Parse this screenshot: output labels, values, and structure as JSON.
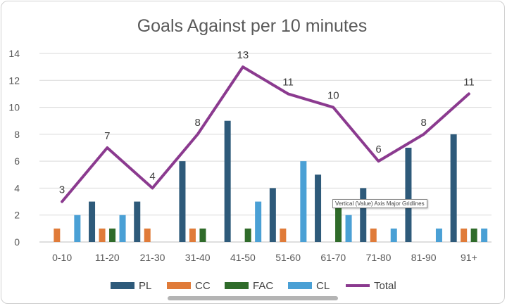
{
  "chart_data": {
    "type": "bar",
    "title": "Goals Against per 10 minutes",
    "categories": [
      "0-10",
      "11-20",
      "21-30",
      "31-40",
      "41-50",
      "51-60",
      "61-70",
      "71-80",
      "81-90",
      "91+"
    ],
    "ylim": [
      0,
      14
    ],
    "yticks": [
      0,
      2,
      4,
      6,
      8,
      10,
      12,
      14
    ],
    "grid": true,
    "legend_position": "bottom",
    "series": [
      {
        "name": "PL",
        "type": "bar",
        "color": "#2e5a7a",
        "values": [
          0,
          3,
          3,
          6,
          9,
          4,
          5,
          4,
          7,
          8
        ]
      },
      {
        "name": "CC",
        "type": "bar",
        "color": "#e07b39",
        "values": [
          1,
          1,
          1,
          1,
          0,
          1,
          0,
          1,
          0,
          1
        ]
      },
      {
        "name": "FAC",
        "type": "bar",
        "color": "#2f6b2a",
        "values": [
          0,
          1,
          0,
          1,
          1,
          0,
          3,
          0,
          0,
          1
        ]
      },
      {
        "name": "CL",
        "type": "bar",
        "color": "#4aa0d5",
        "values": [
          2,
          2,
          0,
          0,
          3,
          6,
          2,
          1,
          1,
          1
        ]
      },
      {
        "name": "Total",
        "type": "line",
        "color": "#8b3a8f",
        "values": [
          3,
          7,
          4,
          8,
          13,
          11,
          10,
          6,
          8,
          11
        ],
        "data_labels": true
      }
    ]
  },
  "tooltip": {
    "text": "Vertical (Value) Axis Major Gridlines"
  }
}
